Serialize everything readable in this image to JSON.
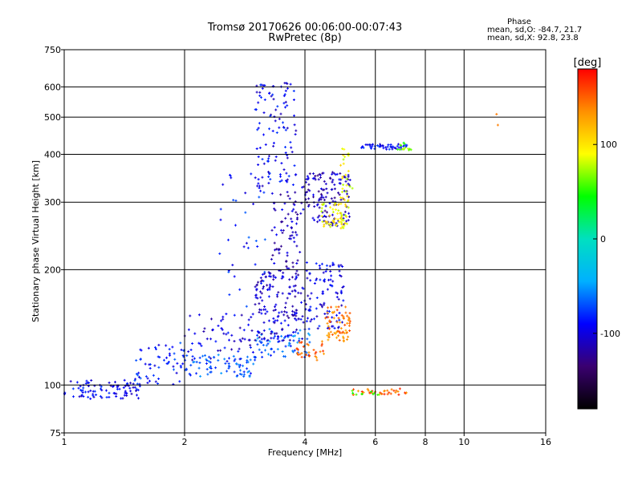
{
  "title": {
    "line1": "Tromsø 20170626 00:06:00-00:07:43",
    "line2": "RwPretec (8p)"
  },
  "phase_stats": {
    "heading": "Phase",
    "o_mode": "mean, sd,O: -84.7, 21.7",
    "x_mode": "mean, sd,X:  92.8, 23.8"
  },
  "chart_data": {
    "type": "scatter",
    "xlabel": "Frequency [MHz]",
    "ylabel": "Stationary phase Virtual Height [km]",
    "xscale": "log",
    "yscale": "log",
    "xlim": [
      1,
      16
    ],
    "ylim": [
      75,
      750
    ],
    "xticks": [
      1,
      2,
      4,
      6,
      8,
      10,
      16
    ],
    "xtick_labels": [
      "1",
      "2",
      "4",
      "6",
      "8",
      "10",
      "16"
    ],
    "yticks": [
      75,
      100,
      200,
      300,
      400,
      500,
      600,
      750
    ],
    "ytick_labels": [
      "75",
      "100",
      "200",
      "300",
      "400",
      "500",
      "600",
      "750"
    ],
    "grid": true,
    "colorbar": {
      "label": "[deg]",
      "range": [
        -180,
        180
      ],
      "ticks": [
        -100,
        0,
        100
      ],
      "tick_labels": [
        "-100",
        "0",
        "100"
      ],
      "colors": [
        "#000000",
        "#3a0070",
        "#0000ff",
        "#00b0ff",
        "#00e0c0",
        "#00ff00",
        "#ffff00",
        "#ff9000",
        "#ff0000"
      ]
    },
    "clusters": [
      {
        "f": [
          1.0,
          1.55
        ],
        "h": [
          92,
          103
        ],
        "phase": -95,
        "n": 90
      },
      {
        "f": [
          1.5,
          2.0
        ],
        "h": [
          100,
          130
        ],
        "phase": -85,
        "n": 60
      },
      {
        "f": [
          2.0,
          3.0
        ],
        "h": [
          105,
          120
        ],
        "phase": -70,
        "n": 80
      },
      {
        "f": [
          3.0,
          4.2
        ],
        "h": [
          118,
          140
        ],
        "phase": -65,
        "n": 70
      },
      {
        "f": [
          2.0,
          3.0
        ],
        "h": [
          115,
          155
        ],
        "phase": -100,
        "n": 60
      },
      {
        "f": [
          3.0,
          4.0
        ],
        "h": [
          130,
          200
        ],
        "phase": -105,
        "n": 160
      },
      {
        "f": [
          4.0,
          5.0
        ],
        "h": [
          140,
          210
        ],
        "phase": -95,
        "n": 100
      },
      {
        "f": [
          3.3,
          3.9
        ],
        "h": [
          200,
          320
        ],
        "phase": -110,
        "n": 70
      },
      {
        "f": [
          3.0,
          3.8
        ],
        "h": [
          330,
          620
        ],
        "phase": -95,
        "n": 110
      },
      {
        "f": [
          2.4,
          3.2
        ],
        "h": [
          160,
          360
        ],
        "phase": -85,
        "n": 40
      },
      {
        "f": [
          3.9,
          5.2
        ],
        "h": [
          260,
          360
        ],
        "phase": -110,
        "n": 140
      },
      {
        "f": [
          4.4,
          5.1
        ],
        "h": [
          255,
          300
        ],
        "phase": 95,
        "n": 60
      },
      {
        "f": [
          4.9,
          5.3
        ],
        "h": [
          290,
          420
        ],
        "phase": 90,
        "n": 30
      },
      {
        "f": [
          3.8,
          4.5
        ],
        "h": [
          115,
          130
        ],
        "phase": 145,
        "n": 30
      },
      {
        "f": [
          4.5,
          5.2
        ],
        "h": [
          130,
          160
        ],
        "phase": 140,
        "n": 70
      },
      {
        "f": [
          5.5,
          7.2
        ],
        "h": [
          412,
          425
        ],
        "phase": -90,
        "n": 50
      },
      {
        "f": [
          6.8,
          7.4
        ],
        "h": [
          410,
          430
        ],
        "phase": 60,
        "n": 14
      },
      {
        "f": [
          5.2,
          7.3
        ],
        "h": [
          94,
          98
        ],
        "phase": 150,
        "n": 35
      },
      {
        "f": [
          5.2,
          6.2
        ],
        "h": [
          94,
          97
        ],
        "phase": 60,
        "n": 10
      },
      {
        "f": [
          12.0,
          12.3
        ],
        "h": [
          470,
          540
        ],
        "phase": 140,
        "n": 2
      }
    ]
  }
}
